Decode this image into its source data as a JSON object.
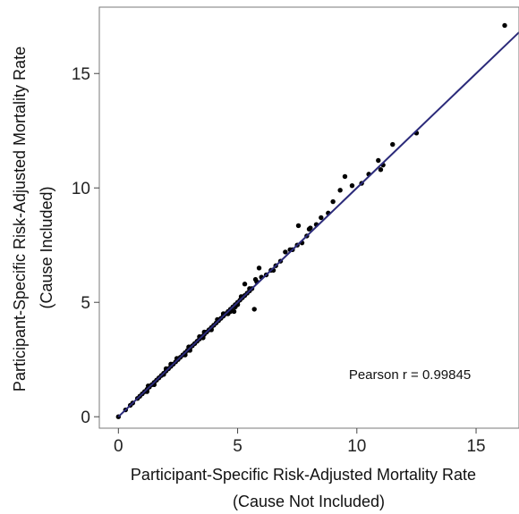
{
  "chart_data": {
    "type": "scatter",
    "title": "",
    "xlabel_lines": [
      "Participant-Specific Risk-Adjusted Mortality Rate",
      "(Cause Not Included)"
    ],
    "ylabel_lines": [
      "Participant-Specific Risk-Adjusted Mortality Rate",
      "(Cause Included)"
    ],
    "xlim": [
      -0.8,
      16.8
    ],
    "ylim": [
      -0.5,
      17.9
    ],
    "x_ticks": [
      0,
      5,
      10,
      15
    ],
    "y_ticks": [
      0,
      5,
      10,
      15
    ],
    "grid": false,
    "annotation": "Pearson r = 0.99845",
    "fit_line": {
      "intercept": 0.0,
      "slope": 1.0,
      "color": "#2b2a7a"
    },
    "point_color": "#000000",
    "series": [
      {
        "x": [
          0.0,
          0.3,
          0.5,
          0.6,
          0.8,
          0.9,
          1.0,
          1.1,
          1.2,
          1.3,
          1.4,
          1.5,
          1.6,
          1.7,
          1.8,
          1.9,
          2.0,
          2.1,
          2.2,
          2.3,
          2.4,
          2.5,
          2.6,
          2.7,
          2.8,
          2.9,
          3.0,
          3.1,
          3.2,
          3.3,
          3.4,
          3.5,
          3.6,
          3.7,
          3.8,
          3.9,
          4.0,
          4.1,
          4.2,
          4.3,
          4.4,
          4.5,
          4.6,
          4.7,
          4.8,
          4.9,
          5.0,
          5.1,
          5.2,
          5.3,
          5.4,
          5.5,
          5.6,
          5.8,
          6.0,
          6.2,
          6.4,
          6.6,
          6.8,
          7.0,
          7.2,
          7.5,
          7.7,
          7.9,
          8.0,
          8.3,
          8.5,
          8.8,
          9.0,
          9.3,
          9.5,
          9.8,
          10.2,
          10.5,
          10.9,
          11.0,
          11.1,
          11.5,
          12.5,
          16.2,
          1.25,
          1.9,
          2.45,
          2.95,
          3.55,
          4.15,
          4.7,
          5.15,
          5.75,
          6.5,
          1.5,
          2.0,
          2.8,
          3.4,
          3.9,
          4.4,
          4.9,
          5.3,
          5.7,
          1.2,
          2.2,
          3.0,
          3.6,
          4.6,
          5.0,
          5.5,
          5.9,
          7.3,
          7.55,
          8.05,
          4.85
        ],
        "y": [
          0.0,
          0.3,
          0.5,
          0.6,
          0.8,
          0.9,
          1.0,
          1.1,
          1.2,
          1.3,
          1.4,
          1.5,
          1.6,
          1.7,
          1.8,
          1.9,
          2.0,
          2.1,
          2.2,
          2.3,
          2.4,
          2.5,
          2.6,
          2.7,
          2.8,
          2.9,
          3.0,
          3.1,
          3.2,
          3.3,
          3.4,
          3.5,
          3.6,
          3.7,
          3.8,
          3.9,
          4.0,
          4.1,
          4.2,
          4.3,
          4.4,
          4.5,
          4.6,
          4.7,
          4.8,
          4.9,
          5.0,
          5.1,
          5.2,
          5.3,
          5.4,
          5.5,
          5.6,
          5.9,
          6.1,
          6.2,
          6.4,
          6.6,
          6.8,
          7.2,
          7.3,
          7.5,
          7.6,
          7.9,
          8.2,
          8.4,
          8.7,
          8.9,
          9.4,
          9.9,
          10.5,
          10.1,
          10.2,
          10.6,
          11.2,
          10.8,
          11.0,
          11.9,
          12.4,
          17.1,
          1.35,
          1.85,
          2.55,
          3.05,
          3.45,
          4.25,
          4.6,
          5.25,
          6.0,
          6.4,
          1.4,
          2.1,
          2.7,
          3.5,
          3.8,
          4.5,
          4.8,
          5.8,
          4.7,
          1.1,
          2.3,
          2.9,
          3.7,
          4.5,
          4.9,
          5.6,
          6.5,
          7.3,
          8.35,
          8.25,
          4.6
        ]
      }
    ]
  }
}
